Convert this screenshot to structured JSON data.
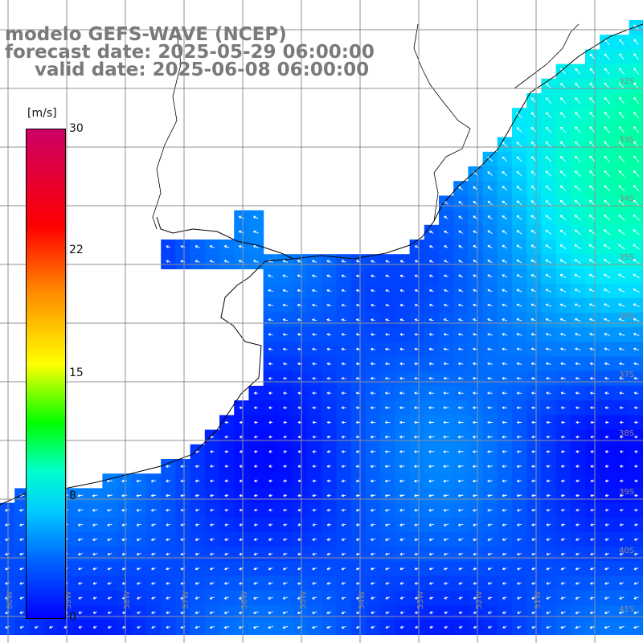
{
  "titles": {
    "model": "modelo GEFS-WAVE (NCEP)",
    "forecast": "forecast date: 2025-05-29 06:00:00",
    "valid": "valid date: 2025-06-08 06:00:00"
  },
  "colorbar": {
    "unit": "[m/s]",
    "ticks": [
      "30",
      "22",
      "15",
      "8",
      "0"
    ],
    "tick_values": [
      30,
      22,
      15,
      8,
      0
    ],
    "range": [
      0,
      30
    ]
  },
  "grid": {
    "lat_labels": [
      "32S",
      "33S",
      "34S",
      "35S",
      "36S",
      "37S",
      "38S",
      "39S",
      "40S",
      "41S"
    ],
    "lon_labels": [
      "60W",
      "59W",
      "58W",
      "57W",
      "56W",
      "55W",
      "54W",
      "53W",
      "52W",
      "51W"
    ]
  },
  "field": {
    "variable": "wind speed",
    "colors": [
      "#0000ff",
      "#0066ff",
      "#00ccff",
      "#00ffcc",
      "#00ff00",
      "#ffff00",
      "#ff8800",
      "#ff0000",
      "#cc0066"
    ]
  }
}
